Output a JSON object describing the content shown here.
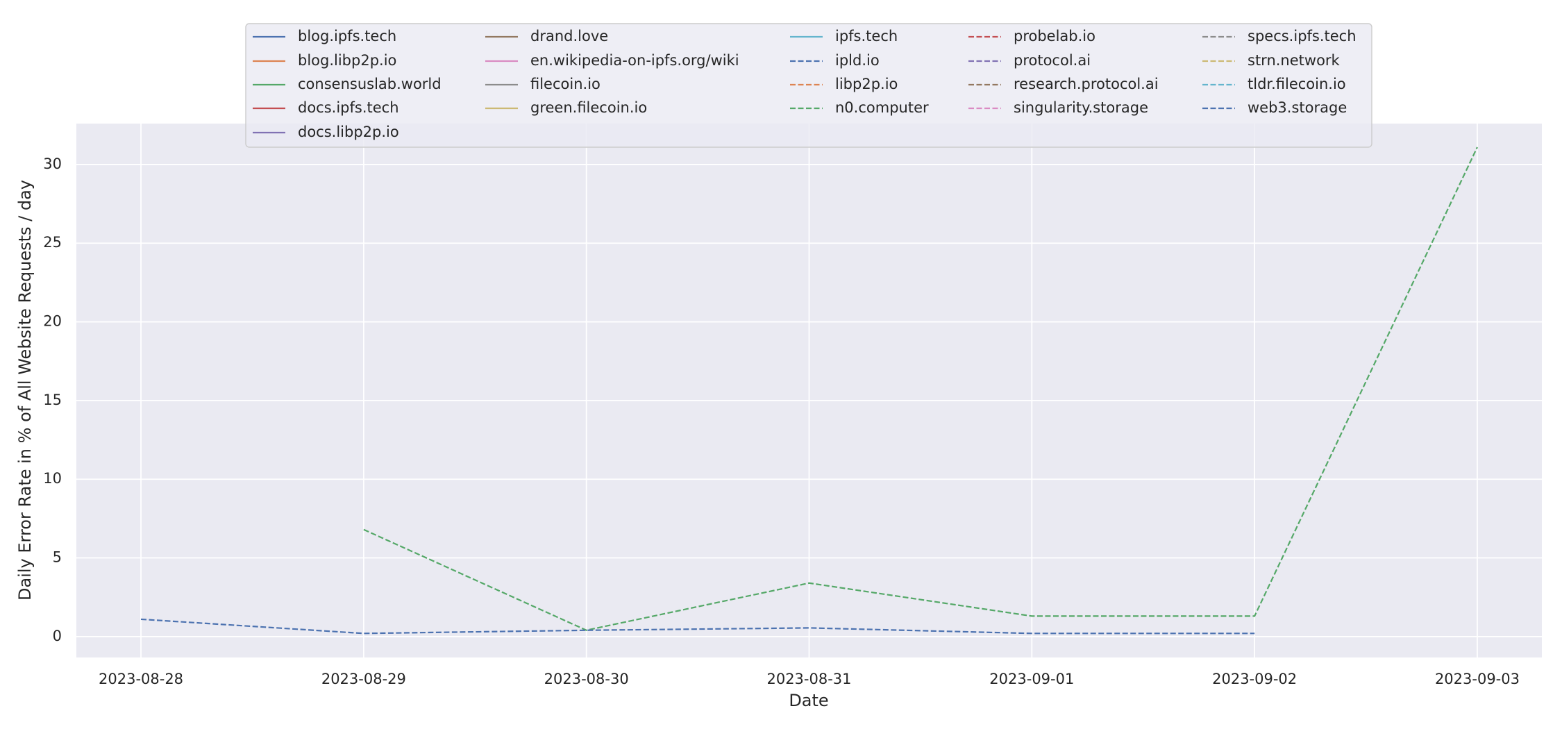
{
  "chart_data": {
    "type": "line",
    "xlabel": "Date",
    "ylabel": "Daily Error Rate in % of All Website Requests / day",
    "categories": [
      "2023-08-28",
      "2023-08-29",
      "2023-08-30",
      "2023-08-31",
      "2023-09-01",
      "2023-09-02",
      "2023-09-03"
    ],
    "ylim": [
      -1.33,
      32.6
    ],
    "yticks": [
      0,
      5,
      10,
      15,
      20,
      25,
      30
    ],
    "grid": true,
    "series": [
      {
        "name": "blog.ipfs.tech",
        "color": "#4c72b0",
        "dash": false,
        "values": [
          null,
          null,
          null,
          null,
          null,
          null,
          null
        ]
      },
      {
        "name": "blog.libp2p.io",
        "color": "#dd8452",
        "dash": false,
        "values": [
          null,
          null,
          null,
          null,
          null,
          null,
          null
        ]
      },
      {
        "name": "consensuslab.world",
        "color": "#55a868",
        "dash": false,
        "values": [
          null,
          null,
          null,
          null,
          null,
          null,
          null
        ]
      },
      {
        "name": "docs.ipfs.tech",
        "color": "#c44e52",
        "dash": false,
        "values": [
          null,
          null,
          null,
          null,
          null,
          null,
          null
        ]
      },
      {
        "name": "docs.libp2p.io",
        "color": "#8172b3",
        "dash": false,
        "values": [
          null,
          null,
          null,
          null,
          null,
          null,
          null
        ]
      },
      {
        "name": "drand.love",
        "color": "#937860",
        "dash": false,
        "values": [
          null,
          null,
          null,
          null,
          null,
          null,
          null
        ]
      },
      {
        "name": "en.wikipedia-on-ipfs.org/wiki",
        "color": "#da8bc3",
        "dash": false,
        "values": [
          null,
          null,
          null,
          null,
          null,
          null,
          null
        ]
      },
      {
        "name": "filecoin.io",
        "color": "#8c8c8c",
        "dash": false,
        "values": [
          null,
          null,
          null,
          null,
          null,
          null,
          null
        ]
      },
      {
        "name": "green.filecoin.io",
        "color": "#ccb974",
        "dash": false,
        "values": [
          null,
          null,
          null,
          null,
          null,
          null,
          null
        ]
      },
      {
        "name": "ipfs.tech",
        "color": "#64b5cd",
        "dash": false,
        "values": [
          null,
          null,
          null,
          null,
          null,
          null,
          null
        ]
      },
      {
        "name": "ipld.io",
        "color": "#4c72b0",
        "dash": true,
        "values": [
          null,
          null,
          null,
          null,
          null,
          null,
          null
        ]
      },
      {
        "name": "libp2p.io",
        "color": "#dd8452",
        "dash": true,
        "values": [
          null,
          null,
          null,
          null,
          null,
          null,
          null
        ]
      },
      {
        "name": "n0.computer",
        "color": "#55a868",
        "dash": true,
        "values": [
          null,
          6.8,
          0.4,
          3.4,
          1.3,
          1.3,
          31.1
        ]
      },
      {
        "name": "probelab.io",
        "color": "#c44e52",
        "dash": true,
        "values": [
          null,
          null,
          null,
          null,
          null,
          null,
          null
        ]
      },
      {
        "name": "protocol.ai",
        "color": "#8172b3",
        "dash": true,
        "values": [
          null,
          null,
          null,
          null,
          null,
          null,
          null
        ]
      },
      {
        "name": "research.protocol.ai",
        "color": "#937860",
        "dash": true,
        "values": [
          null,
          null,
          null,
          null,
          null,
          null,
          null
        ]
      },
      {
        "name": "singularity.storage",
        "color": "#da8bc3",
        "dash": true,
        "values": [
          null,
          null,
          null,
          null,
          null,
          null,
          null
        ]
      },
      {
        "name": "specs.ipfs.tech",
        "color": "#8c8c8c",
        "dash": true,
        "values": [
          null,
          null,
          null,
          null,
          null,
          null,
          null
        ]
      },
      {
        "name": "strn.network",
        "color": "#ccb974",
        "dash": true,
        "values": [
          null,
          null,
          null,
          null,
          null,
          null,
          null
        ]
      },
      {
        "name": "tldr.filecoin.io",
        "color": "#64b5cd",
        "dash": true,
        "values": [
          null,
          null,
          null,
          null,
          null,
          null,
          null
        ]
      },
      {
        "name": "web3.storage",
        "color": "#4c72b0",
        "dash": true,
        "values": [
          1.1,
          0.2,
          0.4,
          0.55,
          0.2,
          0.2,
          null
        ]
      }
    ]
  }
}
